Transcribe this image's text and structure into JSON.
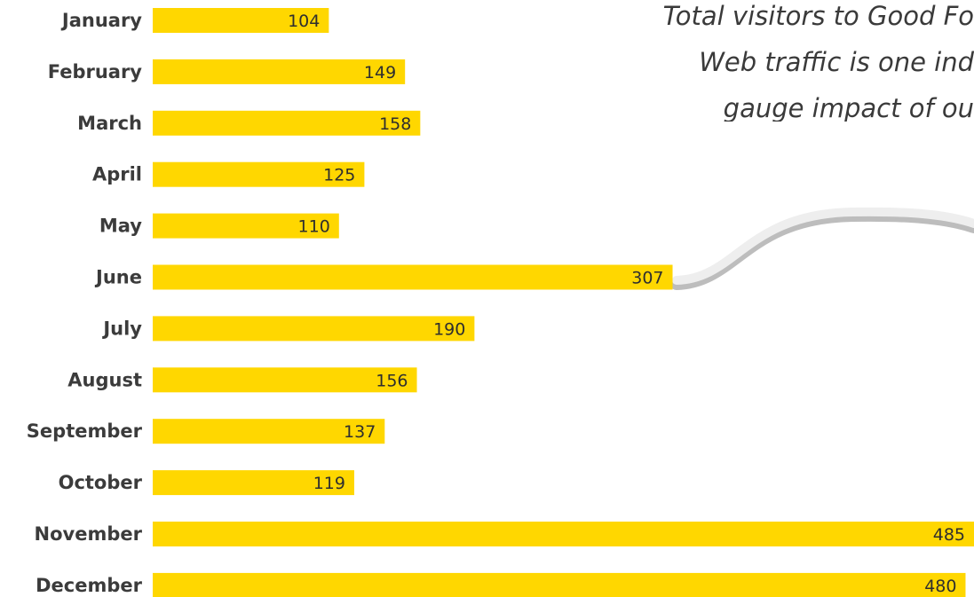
{
  "chart_data": {
    "type": "bar",
    "orientation": "horizontal",
    "categories": [
      "January",
      "February",
      "March",
      "April",
      "May",
      "June",
      "July",
      "August",
      "September",
      "October",
      "November",
      "December"
    ],
    "values": [
      104,
      149,
      158,
      125,
      110,
      307,
      190,
      156,
      137,
      119,
      485,
      480
    ],
    "xlim": [
      0,
      485
    ],
    "grid": false,
    "data_labels": true,
    "annotation_lines": [
      "Total visitors to Good Fo",
      "Web traffic is one ind",
      "gauge impact of ou"
    ]
  },
  "colors": {
    "bar": "#FFD700",
    "label": "#3b3b3b",
    "annotation": "#3a3a3a",
    "connector": "#d9d9d9"
  }
}
